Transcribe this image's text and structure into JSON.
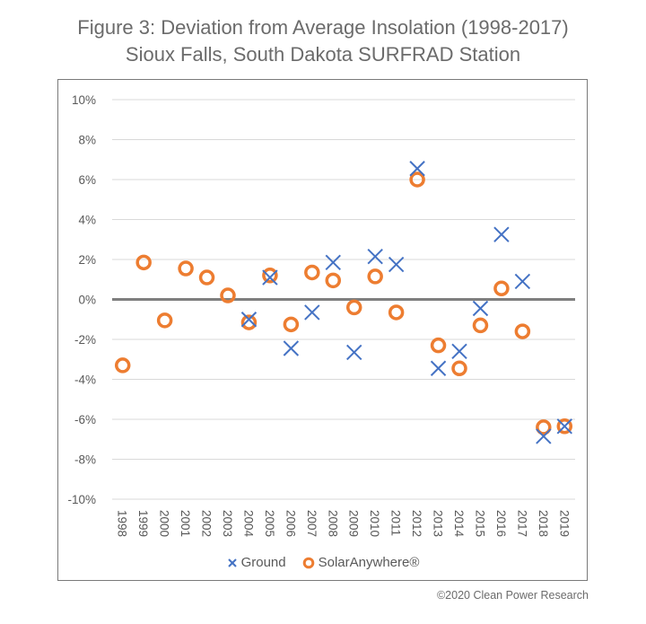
{
  "chart_data": {
    "type": "scatter",
    "title": "Figure 3: Deviation from Average Insolation (1998-2017)",
    "subtitle": "Sioux Falls, South Dakota SURFRAD Station",
    "xlabel": "",
    "ylabel": "",
    "categories": [
      "1998",
      "1999",
      "2000",
      "2001",
      "2002",
      "2003",
      "2004",
      "2005",
      "2006",
      "2007",
      "2008",
      "2009",
      "2010",
      "2011",
      "2012",
      "2013",
      "2014",
      "2015",
      "2016",
      "2017",
      "2018",
      "2019"
    ],
    "ylim": [
      -10,
      10
    ],
    "yticks": [
      10,
      8,
      6,
      4,
      2,
      0,
      -2,
      -4,
      -6,
      -8,
      -10
    ],
    "ytick_labels": [
      "10%",
      "8%",
      "6%",
      "4%",
      "2%",
      "0%",
      "-2%",
      "-4%",
      "-6%",
      "-8%",
      "-10%"
    ],
    "y_unit": "%",
    "grid": true,
    "zero_line": true,
    "legend_position": "bottom",
    "series": [
      {
        "name": "Ground",
        "marker": "x",
        "color": "#4472C4",
        "values": [
          null,
          null,
          null,
          null,
          null,
          null,
          -1.0,
          1.1,
          -2.45,
          -0.65,
          1.85,
          -2.65,
          2.15,
          1.75,
          6.55,
          -3.45,
          -2.6,
          -0.45,
          3.25,
          0.9,
          -6.85,
          -6.35
        ]
      },
      {
        "name": "SolarAnywhere®",
        "marker": "circle-open",
        "color": "#ED7D31",
        "values": [
          -3.3,
          1.85,
          -1.05,
          1.55,
          1.1,
          0.2,
          -1.15,
          1.2,
          -1.25,
          1.35,
          0.95,
          -0.4,
          1.15,
          -0.65,
          6.0,
          -2.3,
          -3.45,
          -1.3,
          0.55,
          -1.6,
          -6.4,
          -6.35
        ]
      }
    ]
  },
  "legend": {
    "ground_label": "Ground",
    "solar_label": "SolarAnywhere®"
  },
  "credit": "©2020 Clean Power Research",
  "colors": {
    "ground": "#4472C4",
    "solaranywhere": "#ED7D31",
    "zero_line": "#7F7F7F",
    "gridline": "#D9D9D9",
    "text": "#595959"
  }
}
